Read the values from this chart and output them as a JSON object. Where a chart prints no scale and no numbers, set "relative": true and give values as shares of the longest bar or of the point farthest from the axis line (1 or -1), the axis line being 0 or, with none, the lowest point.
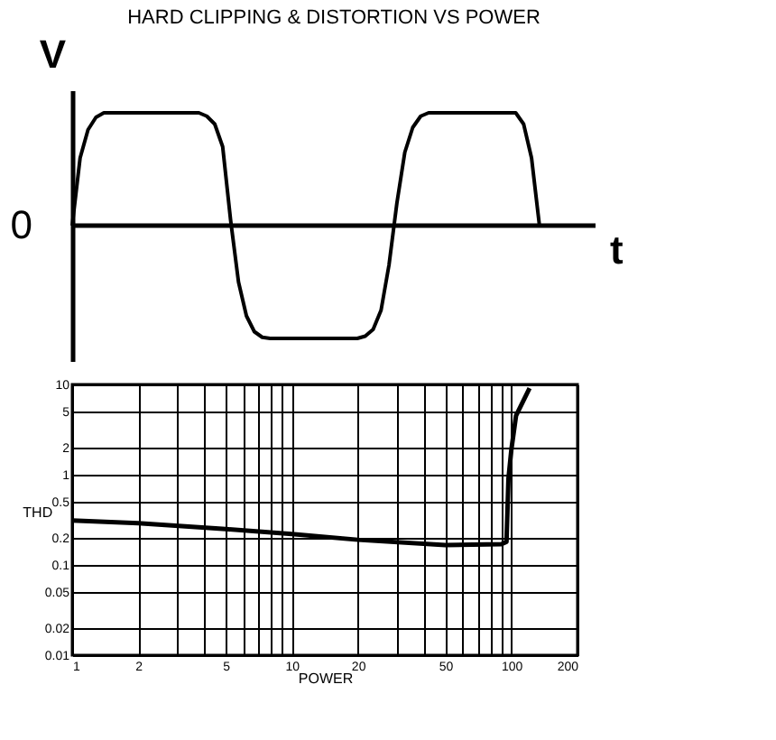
{
  "chart_data": [
    {
      "type": "line",
      "title": "HARD CLIPPING & DISTORTION VS POWER",
      "ylabel": "V",
      "xlabel": "t",
      "relative": true,
      "annotations": [
        "0"
      ],
      "color": "#000000",
      "grid": false,
      "categories": [
        null,
        null,
        null,
        null,
        null,
        null,
        null,
        null,
        null,
        null,
        null,
        null,
        null,
        null,
        null,
        null,
        null,
        null,
        null,
        null,
        null,
        null,
        null,
        null,
        null,
        null,
        null,
        null,
        null,
        null,
        null,
        null,
        null,
        null,
        null,
        null,
        null,
        null,
        null,
        null,
        null,
        null,
        null,
        null,
        null,
        null,
        null,
        null,
        null,
        null,
        null,
        null,
        null,
        null,
        null,
        null,
        null,
        null,
        null,
        null
      ],
      "values": [
        0,
        0.6,
        0.85,
        0.96,
        1,
        1,
        1,
        1,
        1,
        1,
        1,
        1,
        1,
        1,
        1,
        1,
        1,
        0.97,
        0.9,
        0.7,
        0.05,
        -0.5,
        -0.8,
        -0.94,
        -0.99,
        -1,
        -1,
        -1,
        -1,
        -1,
        -1,
        -1,
        -1,
        -1,
        -1,
        -1,
        -1,
        -0.98,
        -0.92,
        -0.75,
        -0.35,
        0.2,
        0.65,
        0.87,
        0.97,
        1,
        1,
        1,
        1,
        1,
        1,
        1,
        1,
        1,
        1,
        1,
        1,
        0.9,
        0.6,
        0
      ]
    },
    {
      "type": "line",
      "xlabel": "POWER",
      "ylabel": "THD",
      "log": "xy",
      "grid": true,
      "color": "#000000",
      "xlim": [
        1,
        200
      ],
      "ylim": [
        0.01,
        10
      ],
      "xticks": [
        1,
        2,
        {
          "value": 3,
          "label": null
        },
        {
          "value": 4,
          "label": null
        },
        5,
        {
          "value": 6,
          "label": null
        },
        {
          "value": 7,
          "label": null
        },
        {
          "value": 8,
          "label": null
        },
        {
          "value": 9,
          "label": null
        },
        10,
        20,
        {
          "value": 30,
          "label": null
        },
        {
          "value": 40,
          "label": null
        },
        50,
        {
          "value": 60,
          "label": null
        },
        {
          "value": 70,
          "label": null
        },
        {
          "value": 80,
          "label": null
        },
        {
          "value": 90,
          "label": null
        },
        100,
        200
      ],
      "yticks": [
        0.01,
        0.02,
        0.05,
        0.1,
        0.2,
        0.5,
        1,
        2,
        5,
        10
      ],
      "x": [
        1,
        2,
        5,
        10,
        20,
        50,
        90,
        95,
        97,
        100,
        105,
        121
      ],
      "values": [
        0.31,
        0.29,
        0.25,
        0.22,
        0.19,
        0.166,
        0.17,
        0.18,
        0.91,
        1.9,
        4.5,
        9.1
      ]
    }
  ]
}
